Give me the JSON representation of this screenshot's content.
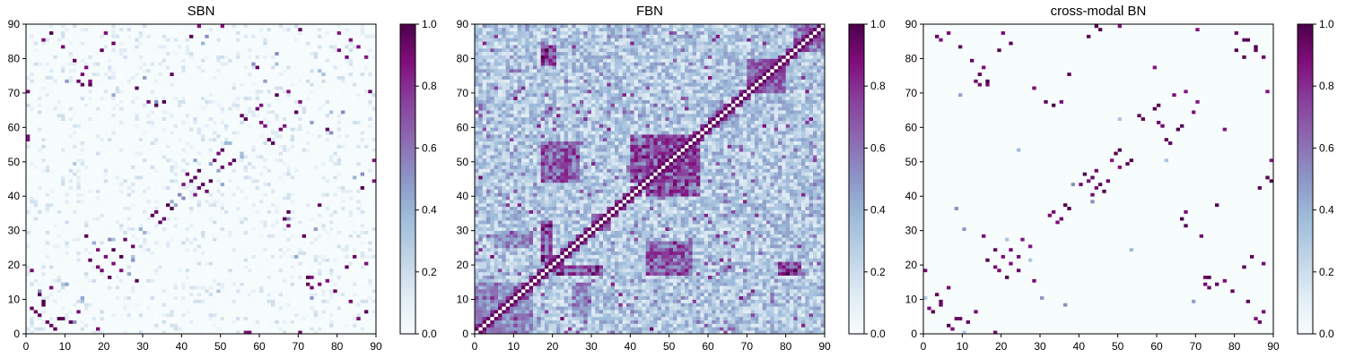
{
  "chart_data": [
    {
      "type": "heatmap",
      "title": "SBN",
      "matrix_size": 90,
      "x_ticks": [
        "0",
        "10",
        "20",
        "30",
        "40",
        "50",
        "60",
        "70",
        "80",
        "90"
      ],
      "y_ticks": [
        "0",
        "10",
        "20",
        "30",
        "40",
        "50",
        "60",
        "70",
        "80",
        "90"
      ],
      "xlim": [
        0,
        90
      ],
      "ylim": [
        0,
        90
      ],
      "colorbar": {
        "range": [
          0.0,
          1.0
        ],
        "ticks": [
          "0.0",
          "0.2",
          "0.4",
          "0.6",
          "0.8",
          "1.0"
        ]
      },
      "colormap": [
        "#f7fcfd",
        "#e0ecf4",
        "#bfd3e6",
        "#9ebcda",
        "#8c96c6",
        "#8c6bb1",
        "#88419d",
        "#810f7c",
        "#4d004b"
      ],
      "description_seed": 11,
      "background_level": 0.03,
      "strong_pairs": [
        [
          1,
          7
        ],
        [
          2,
          6
        ],
        [
          4,
          9
        ],
        [
          5,
          3
        ],
        [
          6,
          2
        ],
        [
          8,
          4
        ],
        [
          11,
          3
        ],
        [
          13,
          6
        ],
        [
          16,
          21
        ],
        [
          18,
          19
        ],
        [
          20,
          22
        ],
        [
          22,
          24
        ],
        [
          24,
          18
        ],
        [
          25,
          27
        ],
        [
          28,
          15
        ],
        [
          33,
          35
        ],
        [
          34,
          32
        ],
        [
          35,
          33
        ],
        [
          36,
          37
        ],
        [
          40,
          43
        ],
        [
          41,
          46
        ],
        [
          42,
          44
        ],
        [
          44,
          47
        ],
        [
          45,
          43
        ],
        [
          46,
          41
        ],
        [
          47,
          44
        ],
        [
          48,
          50
        ],
        [
          50,
          53
        ],
        [
          52,
          49
        ],
        [
          13,
          73
        ],
        [
          14,
          75
        ],
        [
          15,
          77
        ],
        [
          16,
          72
        ],
        [
          19,
          82
        ],
        [
          20,
          87
        ],
        [
          22,
          84
        ],
        [
          28,
          71
        ],
        [
          31,
          67
        ],
        [
          33,
          66
        ],
        [
          35,
          67
        ],
        [
          42,
          86
        ],
        [
          44,
          89
        ],
        [
          56,
          62
        ],
        [
          58,
          58
        ],
        [
          59,
          65
        ],
        [
          60,
          61
        ],
        [
          63,
          55
        ],
        [
          64,
          69
        ],
        [
          66,
          60
        ],
        [
          70,
          67
        ],
        [
          71,
          28
        ],
        [
          72,
          14
        ],
        [
          73,
          16
        ],
        [
          75,
          37
        ],
        [
          77,
          59
        ],
        [
          80,
          82
        ],
        [
          83,
          85
        ],
        [
          85,
          4
        ],
        [
          87,
          80
        ],
        [
          88,
          70
        ],
        [
          89,
          50
        ],
        [
          6,
          87
        ],
        [
          9,
          83
        ],
        [
          12,
          79
        ],
        [
          70,
          0
        ],
        [
          0,
          56
        ],
        [
          1,
          18
        ],
        [
          57,
          0
        ]
      ],
      "medium_pairs": [
        [
          3,
          12
        ],
        [
          9,
          14
        ],
        [
          14,
          10
        ],
        [
          17,
          26
        ],
        [
          21,
          27
        ],
        [
          27,
          22
        ],
        [
          29,
          30
        ],
        [
          37,
          38
        ],
        [
          39,
          40
        ],
        [
          43,
          50
        ],
        [
          49,
          47
        ],
        [
          51,
          55
        ],
        [
          55,
          52
        ],
        [
          61,
          73
        ],
        [
          64,
          78
        ],
        [
          67,
          33
        ],
        [
          69,
          22
        ],
        [
          73,
          73
        ],
        [
          76,
          75
        ],
        [
          78,
          58
        ],
        [
          81,
          64
        ],
        [
          84,
          45
        ],
        [
          86,
          46
        ],
        [
          10,
          73
        ],
        [
          12,
          49
        ],
        [
          30,
          74
        ]
      ]
    },
    {
      "type": "heatmap",
      "title": "FBN",
      "matrix_size": 90,
      "x_ticks": [
        "0",
        "10",
        "20",
        "30",
        "40",
        "50",
        "60",
        "70",
        "80",
        "90"
      ],
      "y_ticks": [
        "0",
        "10",
        "20",
        "30",
        "40",
        "50",
        "60",
        "70",
        "80",
        "90"
      ],
      "xlim": [
        0,
        90
      ],
      "ylim": [
        0,
        90
      ],
      "colorbar": {
        "range": [
          0.0,
          1.0
        ],
        "ticks": [
          "0.0",
          "0.2",
          "0.4",
          "0.6",
          "0.8",
          "1.0"
        ]
      },
      "colormap": [
        "#f7fcfd",
        "#e0ecf4",
        "#bfd3e6",
        "#9ebcda",
        "#8c96c6",
        "#8c6bb1",
        "#88419d",
        "#810f7c",
        "#4d004b"
      ],
      "description_seed": 23,
      "background_level": 0.35,
      "block_regions": [
        [
          17,
          20,
          20,
          33,
          0.85
        ],
        [
          44,
          58,
          40,
          58,
          0.8
        ],
        [
          70,
          80,
          70,
          80,
          0.7
        ],
        [
          17,
          21,
          78,
          84,
          0.9
        ],
        [
          44,
          56,
          17,
          27,
          0.75
        ],
        [
          60,
          64,
          60,
          68,
          0.6
        ],
        [
          85,
          90,
          82,
          90,
          0.7
        ],
        [
          0,
          15,
          0,
          15,
          0.55
        ],
        [
          25,
          30,
          5,
          15,
          0.6
        ],
        [
          30,
          35,
          30,
          35,
          0.6
        ]
      ]
    },
    {
      "type": "heatmap",
      "title": "cross-modal BN",
      "matrix_size": 90,
      "x_ticks": [
        "0",
        "10",
        "20",
        "30",
        "40",
        "50",
        "60",
        "70",
        "80",
        "90"
      ],
      "y_ticks": [
        "0",
        "10",
        "20",
        "30",
        "40",
        "50",
        "60",
        "70",
        "80",
        "90"
      ],
      "xlim": [
        0,
        90
      ],
      "ylim": [
        0,
        90
      ],
      "colorbar": {
        "range": [
          0.0,
          1.0
        ],
        "ticks": [
          "0.0",
          "0.2",
          "0.4",
          "0.6",
          "0.8",
          "1.0"
        ]
      },
      "colormap": [
        "#f7fcfd",
        "#e0ecf4",
        "#bfd3e6",
        "#9ebcda",
        "#8c96c6",
        "#8c6bb1",
        "#88419d",
        "#810f7c",
        "#4d004b"
      ],
      "description_seed": 37,
      "background_level": 0.0,
      "strong_pairs": [
        [
          1,
          7
        ],
        [
          2,
          6
        ],
        [
          4,
          9
        ],
        [
          6,
          2
        ],
        [
          8,
          4
        ],
        [
          11,
          3
        ],
        [
          13,
          6
        ],
        [
          16,
          21
        ],
        [
          18,
          19
        ],
        [
          20,
          22
        ],
        [
          22,
          24
        ],
        [
          24,
          18
        ],
        [
          25,
          27
        ],
        [
          28,
          15
        ],
        [
          33,
          35
        ],
        [
          34,
          32
        ],
        [
          35,
          33
        ],
        [
          36,
          37
        ],
        [
          40,
          43
        ],
        [
          41,
          46
        ],
        [
          42,
          44
        ],
        [
          44,
          47
        ],
        [
          45,
          43
        ],
        [
          46,
          41
        ],
        [
          47,
          44
        ],
        [
          48,
          50
        ],
        [
          50,
          53
        ],
        [
          52,
          49
        ],
        [
          13,
          73
        ],
        [
          14,
          75
        ],
        [
          15,
          77
        ],
        [
          16,
          72
        ],
        [
          19,
          82
        ],
        [
          20,
          87
        ],
        [
          22,
          84
        ],
        [
          28,
          71
        ],
        [
          31,
          67
        ],
        [
          33,
          66
        ],
        [
          35,
          67
        ],
        [
          42,
          86
        ],
        [
          44,
          89
        ],
        [
          56,
          62
        ],
        [
          58,
          58
        ],
        [
          59,
          65
        ],
        [
          60,
          61
        ],
        [
          63,
          55
        ],
        [
          64,
          69
        ],
        [
          66,
          60
        ],
        [
          70,
          67
        ],
        [
          71,
          28
        ],
        [
          72,
          14
        ],
        [
          73,
          16
        ],
        [
          75,
          37
        ],
        [
          77,
          59
        ],
        [
          80,
          82
        ],
        [
          83,
          85
        ],
        [
          85,
          4
        ],
        [
          87,
          80
        ],
        [
          88,
          70
        ],
        [
          89,
          50
        ],
        [
          6,
          87
        ],
        [
          9,
          83
        ],
        [
          12,
          79
        ],
        [
          0,
          18
        ],
        [
          86,
          3
        ],
        [
          88,
          45
        ],
        [
          82,
          85
        ]
      ],
      "medium_pairs": [
        [
          30,
          10
        ],
        [
          38,
          43
        ],
        [
          53,
          24
        ],
        [
          10,
          0
        ],
        [
          69,
          9
        ],
        [
          8,
          36
        ],
        [
          27,
          21
        ],
        [
          62,
          50
        ]
      ]
    }
  ]
}
